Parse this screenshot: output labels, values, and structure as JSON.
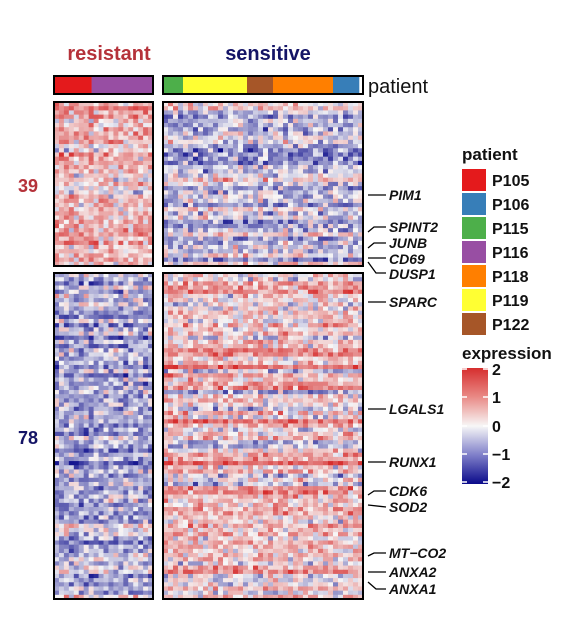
{
  "chart_data": {
    "type": "heatmap",
    "column_groups": [
      {
        "label": "resistant",
        "color": "#b5323a",
        "patients": [
          "P105",
          "P116"
        ],
        "segment_widths": [
          0.38,
          0.62
        ]
      },
      {
        "label": "sensitive",
        "color": "#141466",
        "patients": [
          "P115",
          "P119",
          "P122",
          "P118",
          "P106"
        ],
        "segment_widths": [
          0.1,
          0.32,
          0.13,
          0.3,
          0.13
        ]
      }
    ],
    "patient_annotation_label": "patient",
    "row_clusters": [
      {
        "label": "39",
        "count": 39,
        "color": "#b5323a",
        "mean_resistant": 0.45,
        "mean_sensitive": -0.35
      },
      {
        "label": "78",
        "count": 78,
        "color": "#141466",
        "mean_resistant": -0.55,
        "mean_sensitive": 0.35
      }
    ],
    "genes": [
      {
        "name": "PIM1",
        "cluster": "39"
      },
      {
        "name": "SPINT2",
        "cluster": "39"
      },
      {
        "name": "JUNB",
        "cluster": "39"
      },
      {
        "name": "CD69",
        "cluster": "39"
      },
      {
        "name": "DUSP1",
        "cluster": "39"
      },
      {
        "name": "SPARC",
        "cluster": "78"
      },
      {
        "name": "LGALS1",
        "cluster": "78"
      },
      {
        "name": "RUNX1",
        "cluster": "78"
      },
      {
        "name": "CDK6",
        "cluster": "78"
      },
      {
        "name": "SOD2",
        "cluster": "78"
      },
      {
        "name": "MT−CO2",
        "cluster": "78"
      },
      {
        "name": "ANXA2",
        "cluster": "78"
      },
      {
        "name": "ANXA1",
        "cluster": "78"
      }
    ],
    "patient_legend": {
      "title": "patient",
      "items": [
        {
          "name": "P105",
          "color": "#e41a1c"
        },
        {
          "name": "P106",
          "color": "#377eb8"
        },
        {
          "name": "P115",
          "color": "#4daf4a"
        },
        {
          "name": "P116",
          "color": "#984ea3"
        },
        {
          "name": "P118",
          "color": "#ff7f00"
        },
        {
          "name": "P119",
          "color": "#ffff33"
        },
        {
          "name": "P122",
          "color": "#a65628"
        }
      ]
    },
    "expression_legend": {
      "title": "expression",
      "ticks": [
        "2",
        "1",
        "0",
        "−1",
        "−2"
      ],
      "range": [
        -2,
        2
      ],
      "colors": {
        "low": "#0a0a8a",
        "mid": "#f7f7f7",
        "high": "#d62e2e"
      }
    }
  }
}
